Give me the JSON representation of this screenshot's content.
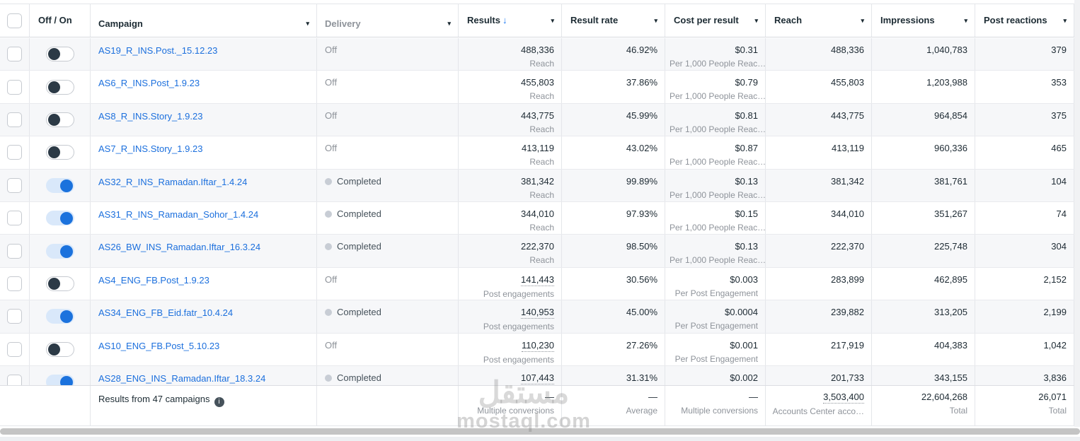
{
  "table": {
    "header": {
      "off_on": "Off / On",
      "campaign": "Campaign",
      "delivery": "Delivery",
      "results": "Results",
      "sort_icon": "↓",
      "result_rate": "Result rate",
      "cost_per_result": "Cost per result",
      "reach": "Reach",
      "impressions": "Impressions",
      "post_reactions": "Post reactions"
    },
    "rows": [
      {
        "campaign": "AS19_R_INS.Post._15.12.23",
        "toggle_on": false,
        "delivery": "Off",
        "delivery_completed": false,
        "results": "488,336",
        "results_label": "Reach",
        "results_underline": false,
        "result_rate": "46.92%",
        "cost": "$0.31",
        "cost_label": "Per 1,000 People Reac…",
        "reach": "488,336",
        "impressions": "1,040,783",
        "post_reactions": "379"
      },
      {
        "campaign": "AS6_R_INS.Post_1.9.23",
        "toggle_on": false,
        "delivery": "Off",
        "delivery_completed": false,
        "results": "455,803",
        "results_label": "Reach",
        "results_underline": false,
        "result_rate": "37.86%",
        "cost": "$0.79",
        "cost_label": "Per 1,000 People Reac…",
        "reach": "455,803",
        "impressions": "1,203,988",
        "post_reactions": "353"
      },
      {
        "campaign": "AS8_R_INS.Story_1.9.23",
        "toggle_on": false,
        "delivery": "Off",
        "delivery_completed": false,
        "results": "443,775",
        "results_label": "Reach",
        "results_underline": false,
        "result_rate": "45.99%",
        "cost": "$0.81",
        "cost_label": "Per 1,000 People Reac…",
        "reach": "443,775",
        "impressions": "964,854",
        "post_reactions": "375"
      },
      {
        "campaign": "AS7_R_INS.Story_1.9.23",
        "toggle_on": false,
        "delivery": "Off",
        "delivery_completed": false,
        "results": "413,119",
        "results_label": "Reach",
        "results_underline": false,
        "result_rate": "43.02%",
        "cost": "$0.87",
        "cost_label": "Per 1,000 People Reac…",
        "reach": "413,119",
        "impressions": "960,336",
        "post_reactions": "465"
      },
      {
        "campaign": "AS32_R_INS_Ramadan.Iftar_1.4.24",
        "toggle_on": true,
        "delivery": "Completed",
        "delivery_completed": true,
        "results": "381,342",
        "results_label": "Reach",
        "results_underline": false,
        "result_rate": "99.89%",
        "cost": "$0.13",
        "cost_label": "Per 1,000 People Reac…",
        "reach": "381,342",
        "impressions": "381,761",
        "post_reactions": "104"
      },
      {
        "campaign": "AS31_R_INS_Ramadan_Sohor_1.4.24",
        "toggle_on": true,
        "delivery": "Completed",
        "delivery_completed": true,
        "results": "344,010",
        "results_label": "Reach",
        "results_underline": false,
        "result_rate": "97.93%",
        "cost": "$0.15",
        "cost_label": "Per 1,000 People Reac…",
        "reach": "344,010",
        "impressions": "351,267",
        "post_reactions": "74"
      },
      {
        "campaign": "AS26_BW_INS_Ramadan.Iftar_16.3.24",
        "toggle_on": true,
        "delivery": "Completed",
        "delivery_completed": true,
        "results": "222,370",
        "results_label": "Reach",
        "results_underline": false,
        "result_rate": "98.50%",
        "cost": "$0.13",
        "cost_label": "Per 1,000 People Reac…",
        "reach": "222,370",
        "impressions": "225,748",
        "post_reactions": "304"
      },
      {
        "campaign": "AS4_ENG_FB.Post_1.9.23",
        "toggle_on": false,
        "delivery": "Off",
        "delivery_completed": false,
        "results": "141,443",
        "results_label": "Post engagements",
        "results_underline": true,
        "result_rate": "30.56%",
        "cost": "$0.003",
        "cost_label": "Per Post Engagement",
        "reach": "283,899",
        "impressions": "462,895",
        "post_reactions": "2,152"
      },
      {
        "campaign": "AS34_ENG_FB_Eid.fatr_10.4.24",
        "toggle_on": true,
        "delivery": "Completed",
        "delivery_completed": true,
        "results": "140,953",
        "results_label": "Post engagements",
        "results_underline": true,
        "result_rate": "45.00%",
        "cost": "$0.0004",
        "cost_label": "Per Post Engagement",
        "reach": "239,882",
        "impressions": "313,205",
        "post_reactions": "2,199"
      },
      {
        "campaign": "AS10_ENG_FB.Post_5.10.23",
        "toggle_on": false,
        "delivery": "Off",
        "delivery_completed": false,
        "results": "110,230",
        "results_label": "Post engagements",
        "results_underline": true,
        "result_rate": "27.26%",
        "cost": "$0.001",
        "cost_label": "Per Post Engagement",
        "reach": "217,919",
        "impressions": "404,383",
        "post_reactions": "1,042"
      },
      {
        "campaign": "AS28_ENG_INS_Ramadan.Iftar_18.3.24",
        "toggle_on": true,
        "delivery": "Completed",
        "delivery_completed": true,
        "results": "107,443",
        "results_label": "",
        "results_underline": true,
        "result_rate": "31.31%",
        "cost": "$0.002",
        "cost_label": "",
        "reach": "201,733",
        "impressions": "343,155",
        "post_reactions": "3,836"
      }
    ],
    "footer": {
      "summary_text": "Results from 47 campaigns",
      "results_value": "—",
      "results_label": "Multiple conversions",
      "result_rate_value": "—",
      "result_rate_label": "Average",
      "cost_value": "—",
      "cost_label": "Multiple conversions",
      "reach_value": "3,503,400",
      "reach_label": "Accounts Center acco…",
      "impressions_value": "22,604,268",
      "impressions_label": "Total",
      "post_reactions_value": "26,071",
      "post_reactions_label": "Total"
    }
  },
  "watermark": {
    "logo": "مستقل",
    "domain": "mostaql.com"
  },
  "colors": {
    "accent_blue": "#1b72dd",
    "link_blue": "#1b6fdd",
    "sort_blue": "#1877f2",
    "toggle_off_knob": "#2c3a46",
    "toggle_on_track": "#d9e8fa",
    "text_dark": "#1c2b33",
    "text_gray": "#8e939a",
    "row_stripe": "#f6f7f9",
    "completed_dot": "#c8cdd5"
  }
}
